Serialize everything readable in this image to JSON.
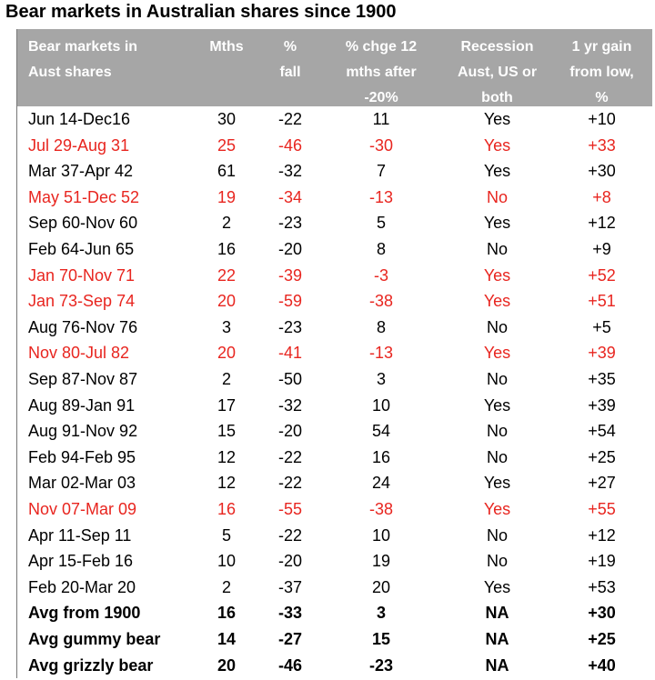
{
  "title": "Bear markets in Australian shares since 1900",
  "table": {
    "header": [
      [
        "Bear markets in",
        "Aust shares"
      ],
      [
        "Mths"
      ],
      [
        "%",
        "fall"
      ],
      [
        "% chge  12",
        "mths after",
        "-20%"
      ],
      [
        "Recession",
        "Aust, US or",
        "both"
      ],
      [
        "1 yr gain",
        "from low,",
        "%"
      ]
    ],
    "rows": [
      {
        "cells": [
          "Jun 14-Dec16",
          "30",
          "-22",
          "11",
          "Yes",
          "+10"
        ]
      },
      {
        "cells": [
          "Jul 29-Aug 31",
          "25",
          "-46",
          "-30",
          "Yes",
          "+33"
        ],
        "color": "#e8251f"
      },
      {
        "cells": [
          "Mar 37-Apr 42",
          "61",
          "-32",
          "7",
          "Yes",
          "+30"
        ]
      },
      {
        "cells": [
          "May 51-Dec 52",
          "19",
          "-34",
          "-13",
          "No",
          "+8"
        ],
        "color": "#e8251f"
      },
      {
        "cells": [
          "Sep 60-Nov 60",
          "2",
          "-23",
          "5",
          "Yes",
          "+12"
        ]
      },
      {
        "cells": [
          "Feb 64-Jun 65",
          "16",
          "-20",
          "8",
          "No",
          "+9"
        ]
      },
      {
        "cells": [
          "Jan 70-Nov 71",
          "22",
          "-39",
          "-3",
          "Yes",
          "+52"
        ],
        "color": "#e8251f"
      },
      {
        "cells": [
          "Jan 73-Sep 74",
          "20",
          "-59",
          "-38",
          "Yes",
          "+51"
        ],
        "color": "#e8251f"
      },
      {
        "cells": [
          "Aug 76-Nov 76",
          "3",
          "-23",
          "8",
          "No",
          "+5"
        ]
      },
      {
        "cells": [
          "Nov 80-Jul 82",
          "20",
          "-41",
          "-13",
          "Yes",
          "+39"
        ],
        "color": "#e8251f"
      },
      {
        "cells": [
          "Sep 87-Nov 87",
          "2",
          "-50",
          "3",
          "No",
          "+35"
        ]
      },
      {
        "cells": [
          "Aug 89-Jan 91",
          "17",
          "-32",
          "10",
          "Yes",
          "+39"
        ]
      },
      {
        "cells": [
          "Aug 91-Nov 92",
          "15",
          "-20",
          "54",
          "No",
          "+54"
        ]
      },
      {
        "cells": [
          "Feb 94-Feb 95",
          "12",
          "-22",
          "16",
          "No",
          "+25"
        ]
      },
      {
        "cells": [
          "Mar 02-Mar 03",
          "12",
          "-22",
          "24",
          "Yes",
          "+27"
        ]
      },
      {
        "cells": [
          "Nov 07-Mar 09",
          "16",
          "-55",
          "-38",
          "Yes",
          "+55"
        ],
        "color": "#e8251f"
      },
      {
        "cells": [
          "Apr 11-Sep 11",
          "5",
          "-22",
          "10",
          "No",
          "+12"
        ]
      },
      {
        "cells": [
          "Apr 15-Feb 16",
          "10",
          "-20",
          "19",
          "No",
          "+19"
        ]
      },
      {
        "cells": [
          "Feb 20-Mar 20",
          "2",
          "-37",
          "20",
          "Yes",
          "+53"
        ]
      },
      {
        "cells": [
          "Avg from 1900",
          "16",
          "-33",
          "3",
          "NA",
          "+30"
        ],
        "bold": true
      },
      {
        "cells": [
          "Avg gummy bear",
          "14",
          "-27",
          "15",
          "NA",
          "+25"
        ],
        "bold": true
      },
      {
        "cells": [
          "Avg grizzly bear",
          "20",
          "-46",
          "-23",
          "NA",
          "+40"
        ],
        "bold": true
      }
    ]
  }
}
